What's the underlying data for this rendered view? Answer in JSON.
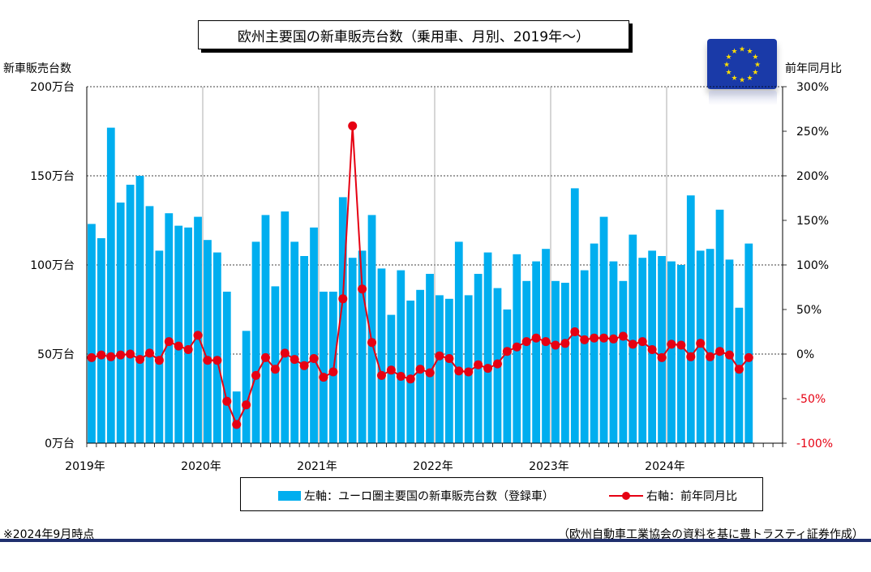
{
  "title": "欧州主要国の新車販売台数（乗用車、月別、2019年～）",
  "left_axis_title": "新車販売台数",
  "right_axis_title": "前年同月比",
  "note": "※2024年9月時点",
  "source": "（欧州自動車工業協会の資料を基に豊トラスティ証券作成）",
  "legend": {
    "bar_label": "左軸：ユーロ圏主要国の新車販売台数（登録車）",
    "line_label": "右軸：前年同月比"
  },
  "flag_icon": "eu-flag-icon",
  "colors": {
    "bar": "#00aeef",
    "line": "#e60012",
    "grid": "#000000"
  },
  "chart_data": {
    "type": "bar",
    "x_tick_labels": [
      "2019年",
      "2020年",
      "2021年",
      "2022年",
      "2023年",
      "2024年"
    ],
    "left_axis": {
      "ylim": [
        0,
        200
      ],
      "tick_labels": [
        "0万台",
        "50万台",
        "100万台",
        "150万台",
        "200万台"
      ]
    },
    "right_axis": {
      "ylim": [
        -100,
        300
      ],
      "tick_labels": [
        "-100%",
        "-50%",
        "0%",
        "50%",
        "100%",
        "150%",
        "200%",
        "250%",
        "300%"
      ]
    },
    "months": [
      "2019-01",
      "2019-02",
      "2019-03",
      "2019-04",
      "2019-05",
      "2019-06",
      "2019-07",
      "2019-08",
      "2019-09",
      "2019-10",
      "2019-11",
      "2019-12",
      "2020-01",
      "2020-02",
      "2020-03",
      "2020-04",
      "2020-05",
      "2020-06",
      "2020-07",
      "2020-08",
      "2020-09",
      "2020-10",
      "2020-11",
      "2020-12",
      "2021-01",
      "2021-02",
      "2021-03",
      "2021-04",
      "2021-05",
      "2021-06",
      "2021-07",
      "2021-08",
      "2021-09",
      "2021-10",
      "2021-11",
      "2021-12",
      "2022-01",
      "2022-02",
      "2022-03",
      "2022-04",
      "2022-05",
      "2022-06",
      "2022-07",
      "2022-08",
      "2022-09",
      "2022-10",
      "2022-11",
      "2022-12",
      "2023-01",
      "2023-02",
      "2023-03",
      "2023-04",
      "2023-05",
      "2023-06",
      "2023-07",
      "2023-08",
      "2023-09",
      "2023-10",
      "2023-11",
      "2023-12",
      "2024-01",
      "2024-02",
      "2024-03",
      "2024-04",
      "2024-05",
      "2024-06",
      "2024-07",
      "2024-08",
      "2024-09"
    ],
    "series": [
      {
        "name": "左軸：ユーロ圏主要国の新車販売台数（登録車）",
        "type": "bar",
        "axis": "left",
        "unit": "万台",
        "values": [
          123,
          115,
          177,
          135,
          145,
          150,
          133,
          108,
          129,
          122,
          121,
          127,
          114,
          107,
          85,
          29,
          63,
          113,
          128,
          88,
          130,
          113,
          105,
          121,
          85,
          85,
          138,
          104,
          108,
          128,
          98,
          72,
          97,
          80,
          86,
          95,
          83,
          81,
          113,
          83,
          95,
          107,
          87,
          75,
          106,
          91,
          102,
          109,
          91,
          90,
          143,
          97,
          112,
          127,
          102,
          91,
          117,
          104,
          108,
          105,
          102,
          100,
          139,
          108,
          109,
          131,
          103,
          76,
          112
        ]
      },
      {
        "name": "右軸：前年同月比",
        "type": "line",
        "axis": "right",
        "unit": "%",
        "values": [
          -4,
          -1,
          -3,
          -1,
          0,
          -6,
          1,
          -7,
          14,
          9,
          5,
          21,
          -7,
          -7,
          -53,
          -79,
          -57,
          -24,
          -4,
          -17,
          1,
          -6,
          -13,
          -5,
          -26,
          -20,
          62,
          256,
          73,
          13,
          -24,
          -18,
          -25,
          -28,
          -17,
          -21,
          -2,
          -5,
          -19,
          -20,
          -12,
          -16,
          -11,
          3,
          8,
          14,
          18,
          14,
          10,
          12,
          25,
          16,
          18,
          18,
          17,
          20,
          11,
          14,
          5,
          -4,
          11,
          10,
          -3,
          12,
          -3,
          3,
          -1,
          -17,
          -4
        ]
      }
    ]
  }
}
